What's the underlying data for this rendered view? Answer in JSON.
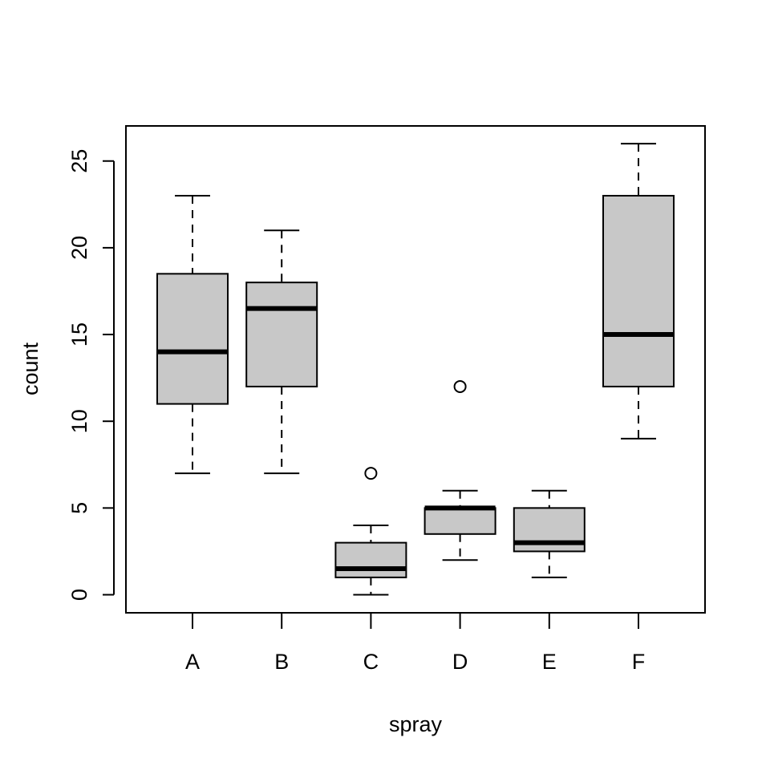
{
  "chart_data": {
    "type": "boxplot",
    "title": "",
    "xlabel": "spray",
    "ylabel": "count",
    "categories": [
      "A",
      "B",
      "C",
      "D",
      "E",
      "F"
    ],
    "ylim": [
      -1,
      27
    ],
    "yticks": [
      0,
      5,
      10,
      15,
      20,
      25
    ],
    "box_color": "#c8c8c8",
    "grid": false,
    "boxes": [
      {
        "category": "A",
        "lower_whisker": 7,
        "q1": 11,
        "median": 14,
        "q3": 18.5,
        "upper_whisker": 23,
        "outliers": []
      },
      {
        "category": "B",
        "lower_whisker": 7,
        "q1": 12,
        "median": 16.5,
        "q3": 18,
        "upper_whisker": 21,
        "outliers": []
      },
      {
        "category": "C",
        "lower_whisker": 0,
        "q1": 1,
        "median": 1.5,
        "q3": 3,
        "upper_whisker": 4,
        "outliers": [
          7
        ]
      },
      {
        "category": "D",
        "lower_whisker": 2,
        "q1": 3.5,
        "median": 5,
        "q3": 5,
        "upper_whisker": 6,
        "outliers": [
          12
        ]
      },
      {
        "category": "E",
        "lower_whisker": 1,
        "q1": 2.5,
        "median": 3,
        "q3": 5,
        "upper_whisker": 6,
        "outliers": []
      },
      {
        "category": "F",
        "lower_whisker": 9,
        "q1": 12,
        "median": 15,
        "q3": 23,
        "upper_whisker": 26,
        "outliers": []
      }
    ]
  }
}
